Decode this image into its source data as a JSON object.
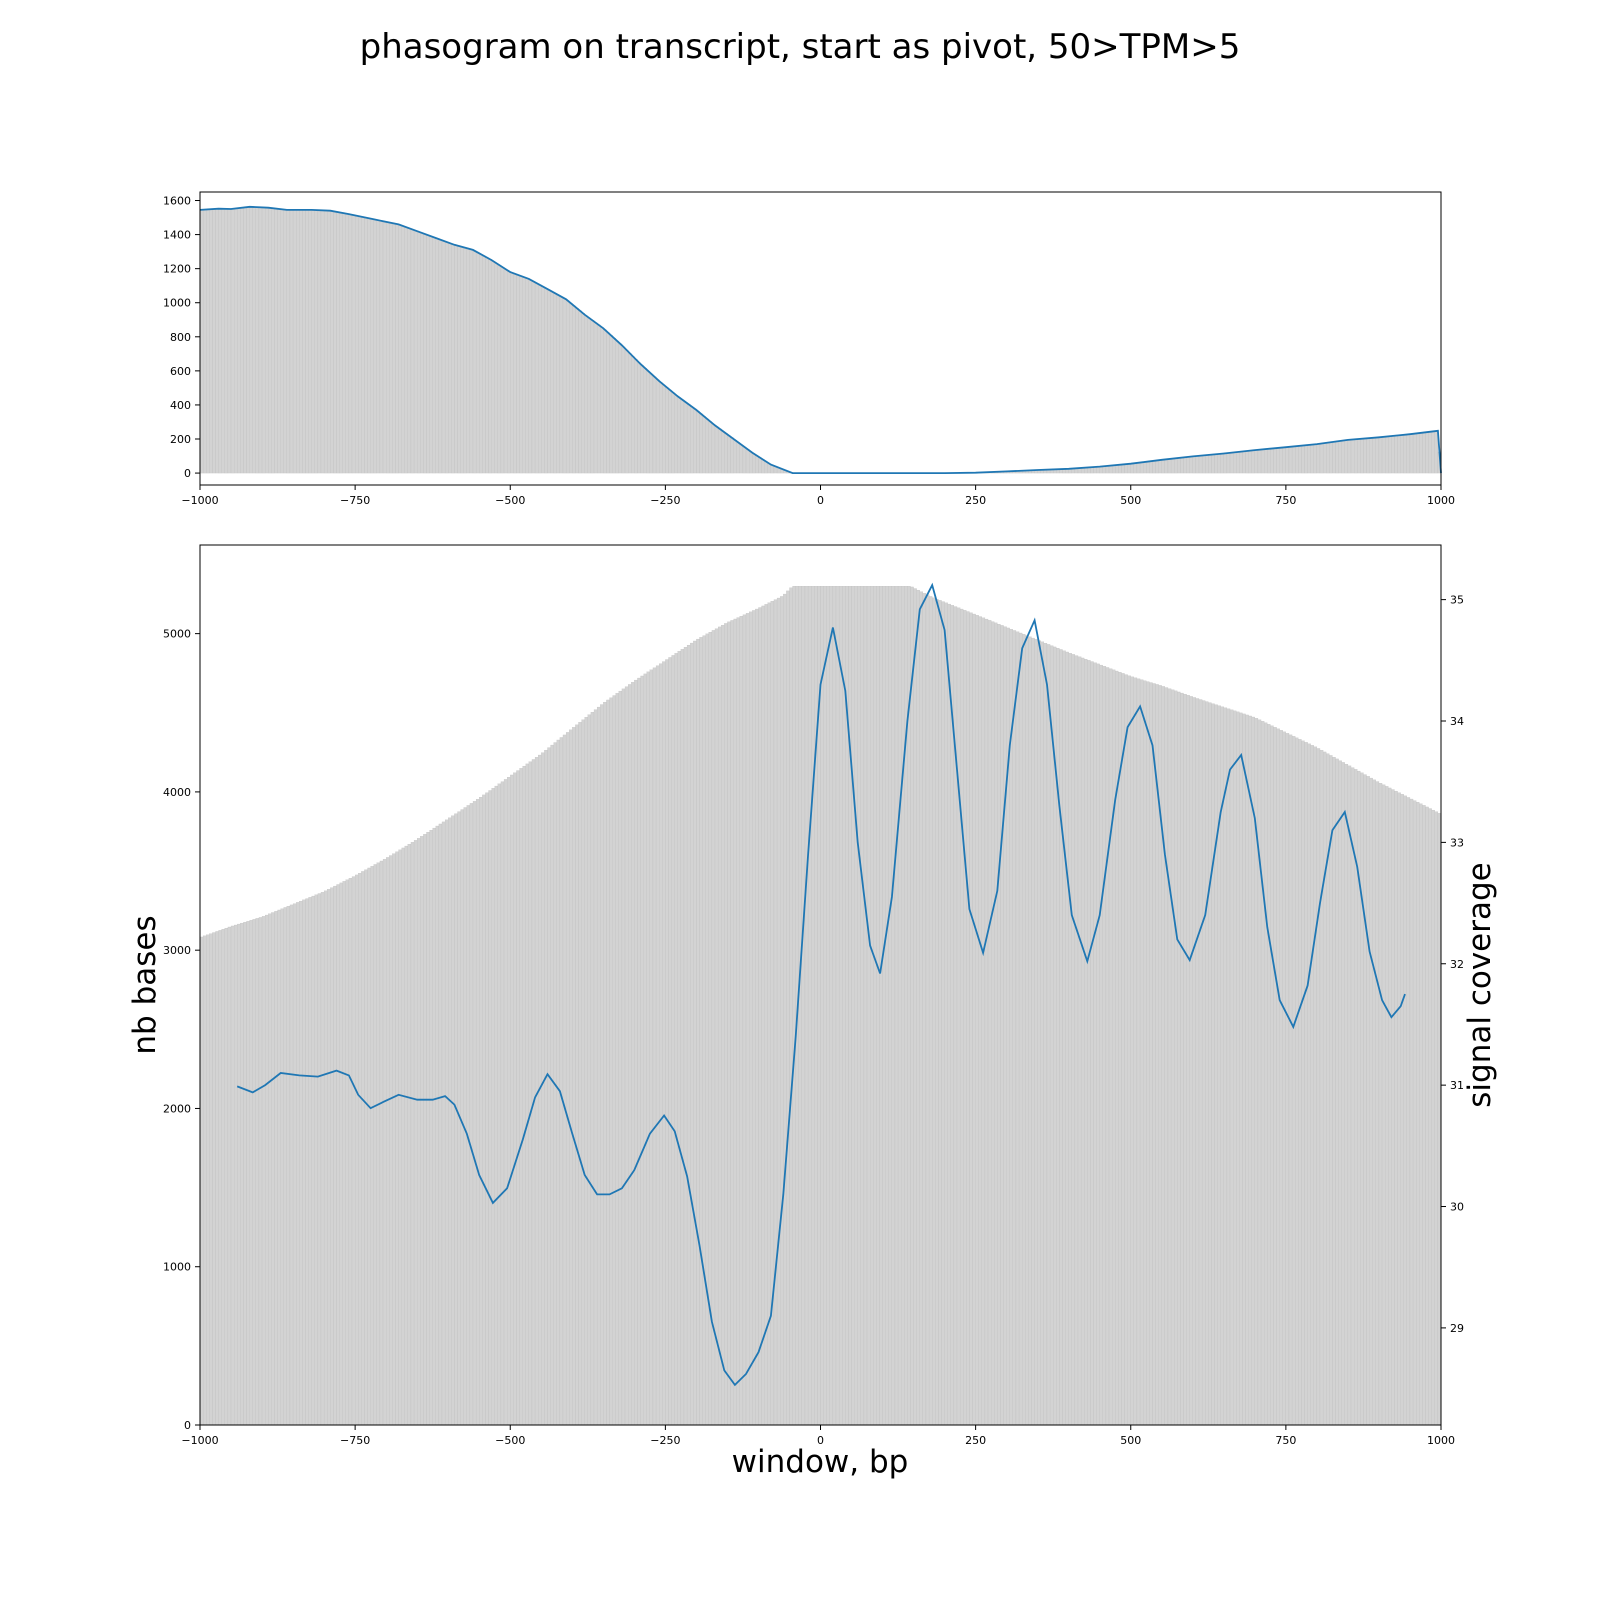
{
  "title": "phasogram on transcript, start as pivot, 50>TPM>5",
  "colors": {
    "line": "#1f77b4",
    "bars": "#d3d3d3",
    "bar_edge": "#b9b9b9",
    "axes": "#000000"
  },
  "chart_data": [
    {
      "id": "top",
      "type": "bar",
      "xlabel": "",
      "ylabel": "",
      "xlim": [
        -1000,
        1000
      ],
      "ylim": [
        -70,
        1650
      ],
      "xticks": [
        -1000,
        -750,
        -500,
        -250,
        0,
        250,
        500,
        750,
        1000
      ],
      "xtick_labels": [
        "−1000",
        "−750",
        "−500",
        "−250",
        "0",
        "250",
        "500",
        "750",
        "1000"
      ],
      "yticks": [
        0,
        200,
        400,
        600,
        800,
        1000,
        1200,
        1400,
        1600
      ],
      "ytick_labels": [
        "0",
        "200",
        "400",
        "600",
        "800",
        "1000",
        "1200",
        "1400",
        "1600"
      ],
      "bar_width": 5,
      "series": [
        {
          "kind": "bars_and_line",
          "points": [
            [
              -1000,
              1545
            ],
            [
              -970,
              1552
            ],
            [
              -950,
              1550
            ],
            [
              -920,
              1563
            ],
            [
              -890,
              1558
            ],
            [
              -860,
              1545
            ],
            [
              -820,
              1545
            ],
            [
              -790,
              1540
            ],
            [
              -760,
              1520
            ],
            [
              -720,
              1490
            ],
            [
              -680,
              1460
            ],
            [
              -650,
              1420
            ],
            [
              -620,
              1380
            ],
            [
              -590,
              1340
            ],
            [
              -560,
              1310
            ],
            [
              -530,
              1250
            ],
            [
              -500,
              1180
            ],
            [
              -470,
              1140
            ],
            [
              -440,
              1080
            ],
            [
              -410,
              1020
            ],
            [
              -380,
              930
            ],
            [
              -350,
              850
            ],
            [
              -320,
              750
            ],
            [
              -290,
              640
            ],
            [
              -260,
              540
            ],
            [
              -230,
              450
            ],
            [
              -200,
              370
            ],
            [
              -170,
              280
            ],
            [
              -140,
              200
            ],
            [
              -110,
              120
            ],
            [
              -80,
              50
            ],
            [
              -45,
              0
            ],
            [
              0,
              0
            ],
            [
              100,
              0
            ],
            [
              200,
              0
            ],
            [
              250,
              2
            ],
            [
              300,
              10
            ],
            [
              350,
              18
            ],
            [
              400,
              25
            ],
            [
              450,
              38
            ],
            [
              500,
              55
            ],
            [
              550,
              78
            ],
            [
              600,
              98
            ],
            [
              650,
              115
            ],
            [
              700,
              135
            ],
            [
              750,
              152
            ],
            [
              800,
              170
            ],
            [
              850,
              195
            ],
            [
              900,
              210
            ],
            [
              950,
              228
            ],
            [
              995,
              248
            ],
            [
              1000,
              0
            ]
          ]
        }
      ]
    },
    {
      "id": "bottom",
      "type": "bar",
      "xlabel": "window, bp",
      "ylabel": "nb bases",
      "y2label": "signal coverage",
      "xlim": [
        -1000,
        1000
      ],
      "ylim": [
        0,
        5560
      ],
      "y2lim": [
        28.2,
        35.45
      ],
      "xticks": [
        -1000,
        -750,
        -500,
        -250,
        0,
        250,
        500,
        750,
        1000
      ],
      "xtick_labels": [
        "−1000",
        "−750",
        "−500",
        "−250",
        "0",
        "250",
        "500",
        "750",
        "1000"
      ],
      "yticks": [
        0,
        1000,
        2000,
        3000,
        4000,
        5000
      ],
      "ytick_labels": [
        "0",
        "1000",
        "2000",
        "3000",
        "4000",
        "5000"
      ],
      "y2ticks": [
        29,
        30,
        31,
        32,
        33,
        34,
        35
      ],
      "y2tick_labels": [
        "29",
        "30",
        "31",
        "32",
        "33",
        "34",
        "35"
      ],
      "bar_width": 5,
      "series": [
        {
          "kind": "bars",
          "axis": "left",
          "points": [
            [
              -1000,
              3080
            ],
            [
              -950,
              3150
            ],
            [
              -900,
              3210
            ],
            [
              -850,
              3290
            ],
            [
              -800,
              3370
            ],
            [
              -750,
              3470
            ],
            [
              -700,
              3580
            ],
            [
              -650,
              3700
            ],
            [
              -600,
              3830
            ],
            [
              -550,
              3960
            ],
            [
              -500,
              4100
            ],
            [
              -450,
              4240
            ],
            [
              -400,
              4400
            ],
            [
              -350,
              4560
            ],
            [
              -300,
              4700
            ],
            [
              -250,
              4830
            ],
            [
              -200,
              4960
            ],
            [
              -150,
              5070
            ],
            [
              -100,
              5160
            ],
            [
              -60,
              5240
            ],
            [
              -45,
              5300
            ],
            [
              0,
              5300
            ],
            [
              145,
              5300
            ],
            [
              180,
              5230
            ],
            [
              250,
              5120
            ],
            [
              300,
              5040
            ],
            [
              400,
              4880
            ],
            [
              500,
              4730
            ],
            [
              550,
              4670
            ],
            [
              600,
              4600
            ],
            [
              700,
              4470
            ],
            [
              800,
              4280
            ],
            [
              900,
              4060
            ],
            [
              1000,
              3860
            ]
          ]
        },
        {
          "kind": "line",
          "axis": "right",
          "points": [
            [
              -940,
              30.99
            ],
            [
              -915,
              30.94
            ],
            [
              -895,
              31.0
            ],
            [
              -870,
              31.1
            ],
            [
              -840,
              31.08
            ],
            [
              -810,
              31.07
            ],
            [
              -780,
              31.12
            ],
            [
              -760,
              31.08
            ],
            [
              -745,
              30.92
            ],
            [
              -725,
              30.81
            ],
            [
              -705,
              30.86
            ],
            [
              -680,
              30.92
            ],
            [
              -650,
              30.88
            ],
            [
              -625,
              30.88
            ],
            [
              -605,
              30.91
            ],
            [
              -590,
              30.84
            ],
            [
              -570,
              30.6
            ],
            [
              -550,
              30.26
            ],
            [
              -528,
              30.03
            ],
            [
              -505,
              30.15
            ],
            [
              -480,
              30.55
            ],
            [
              -460,
              30.9
            ],
            [
              -440,
              31.09
            ],
            [
              -420,
              30.95
            ],
            [
              -400,
              30.6
            ],
            [
              -380,
              30.26
            ],
            [
              -360,
              30.1
            ],
            [
              -340,
              30.1
            ],
            [
              -320,
              30.15
            ],
            [
              -300,
              30.3
            ],
            [
              -275,
              30.6
            ],
            [
              -252,
              30.75
            ],
            [
              -235,
              30.62
            ],
            [
              -215,
              30.25
            ],
            [
              -195,
              29.68
            ],
            [
              -175,
              29.05
            ],
            [
              -155,
              28.65
            ],
            [
              -138,
              28.53
            ],
            [
              -120,
              28.62
            ],
            [
              -100,
              28.8
            ],
            [
              -80,
              29.1
            ],
            [
              -60,
              30.1
            ],
            [
              -40,
              31.4
            ],
            [
              -20,
              32.9
            ],
            [
              0,
              34.3
            ],
            [
              20,
              34.77
            ],
            [
              40,
              34.25
            ],
            [
              60,
              33.0
            ],
            [
              80,
              32.15
            ],
            [
              96,
              31.92
            ],
            [
              115,
              32.55
            ],
            [
              140,
              34.0
            ],
            [
              160,
              34.92
            ],
            [
              180,
              35.12
            ],
            [
              200,
              34.75
            ],
            [
              220,
              33.6
            ],
            [
              240,
              32.45
            ],
            [
              262,
              32.09
            ],
            [
              285,
              32.6
            ],
            [
              305,
              33.8
            ],
            [
              325,
              34.6
            ],
            [
              345,
              34.83
            ],
            [
              365,
              34.3
            ],
            [
              385,
              33.3
            ],
            [
              405,
              32.4
            ],
            [
              430,
              32.02
            ],
            [
              450,
              32.4
            ],
            [
              475,
              33.35
            ],
            [
              495,
              33.95
            ],
            [
              515,
              34.12
            ],
            [
              535,
              33.8
            ],
            [
              555,
              32.9
            ],
            [
              575,
              32.2
            ],
            [
              595,
              32.03
            ],
            [
              620,
              32.4
            ],
            [
              645,
              33.25
            ],
            [
              660,
              33.6
            ],
            [
              678,
              33.72
            ],
            [
              700,
              33.2
            ],
            [
              720,
              32.3
            ],
            [
              740,
              31.7
            ],
            [
              762,
              31.48
            ],
            [
              785,
              31.82
            ],
            [
              805,
              32.5
            ],
            [
              825,
              33.1
            ],
            [
              845,
              33.25
            ],
            [
              865,
              32.8
            ],
            [
              885,
              32.1
            ],
            [
              905,
              31.7
            ],
            [
              920,
              31.56
            ],
            [
              935,
              31.65
            ],
            [
              942,
              31.75
            ]
          ]
        }
      ]
    }
  ]
}
